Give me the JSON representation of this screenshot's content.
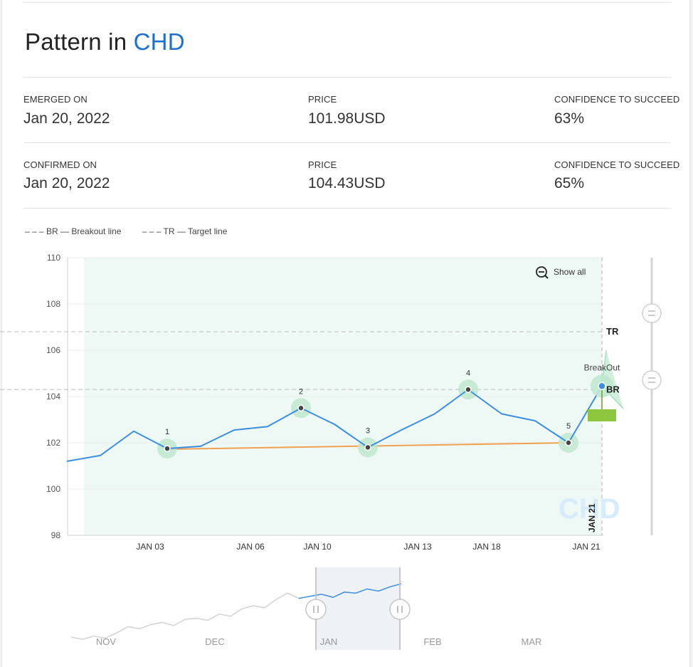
{
  "header": {
    "title_prefix": "Pattern in",
    "symbol": "CHD"
  },
  "emerged": {
    "date_label": "EMERGED ON",
    "date": "Jan 20, 2022",
    "price_label": "PRICE",
    "price": "101.98USD",
    "conf_label": "CONFIDENCE TO SUCCEED",
    "conf": "63%"
  },
  "confirmed": {
    "date_label": "CONFIRMED ON",
    "date": "Jan 20, 2022",
    "price_label": "PRICE",
    "price": "104.43USD",
    "conf_label": "CONFIDENCE TO SUCCEED",
    "conf": "65%"
  },
  "legend": {
    "br": "– – –  BR — Breakout line",
    "tr": "– – –  TR — Target line"
  },
  "controls": {
    "show_all": "Show all"
  },
  "colors": {
    "price_line": "#3b8ee0",
    "support_line": "#f0a050",
    "pivot_glow": "#bfe8cf",
    "zone": "#eef8f4",
    "target_box": "#8cc63f",
    "accent": "#1f6fd1"
  },
  "chart_data": {
    "type": "line",
    "ylim": [
      98,
      110
    ],
    "yticks": [
      "98",
      "100",
      "102",
      "104",
      "106",
      "108",
      "110"
    ],
    "x_tick_labels": [
      "JAN 03",
      "JAN 06",
      "JAN 10",
      "JAN 13",
      "JAN 18",
      "JAN 21"
    ],
    "price_series": [
      101.2,
      101.45,
      102.5,
      101.75,
      101.85,
      102.55,
      102.7,
      103.5,
      102.8,
      101.8,
      102.55,
      103.25,
      104.3,
      103.25,
      102.95,
      102.0,
      104.45
    ],
    "pivots": [
      {
        "label": "1",
        "index": 3,
        "value": 101.75
      },
      {
        "label": "2",
        "index": 7,
        "value": 103.5
      },
      {
        "label": "3",
        "index": 9,
        "value": 101.8
      },
      {
        "label": "4",
        "index": 12,
        "value": 104.3
      },
      {
        "label": "5",
        "index": 15,
        "value": 102.0
      }
    ],
    "support_line": [
      101.72,
      102.0
    ],
    "breakout_line": 104.3,
    "target_line": 106.8,
    "breakout_label": "BreakOut",
    "br_label": "BR",
    "tr_label": "TR",
    "event_date_label": "JAN 21",
    "watermark": "CHD"
  },
  "navigator": {
    "labels": [
      "NOV",
      "DEC",
      "JAN",
      "FEB",
      "MAR"
    ],
    "series": [
      99.2,
      99.0,
      99.3,
      99.1,
      99.6,
      100.2,
      100.0,
      100.4,
      100.6,
      100.3,
      100.9,
      101.0,
      100.8,
      101.4,
      101.2,
      101.9,
      102.2,
      102.0,
      102.8,
      103.4,
      102.9,
      103.1,
      103.3,
      103.0,
      103.5,
      103.4,
      103.8,
      103.6,
      104.0,
      104.3
    ],
    "highlight_start": 20
  }
}
